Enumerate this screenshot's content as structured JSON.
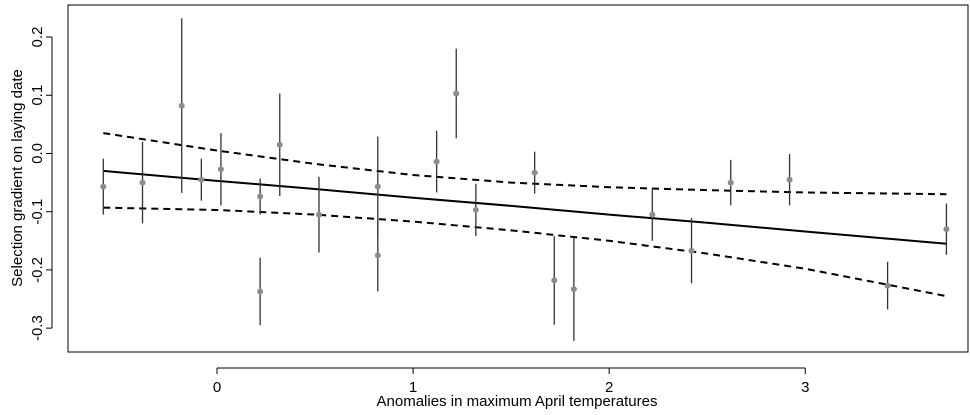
{
  "chart_data": {
    "type": "scatter",
    "xlabel": "Anomalies in maximum April temperatures",
    "ylabel": "Selection gradient on laying date",
    "x": [
      -0.58,
      -0.38,
      -0.18,
      -0.08,
      0.02,
      0.22,
      0.22,
      0.32,
      0.52,
      0.82,
      0.82,
      1.12,
      1.22,
      1.32,
      1.62,
      1.72,
      1.82,
      2.22,
      2.42,
      2.62,
      2.92,
      3.42,
      3.72
    ],
    "values": [
      -0.057,
      -0.05,
      0.082,
      -0.045,
      -0.027,
      -0.074,
      -0.237,
      0.015,
      -0.105,
      -0.057,
      -0.175,
      -0.014,
      0.103,
      -0.097,
      -0.033,
      -0.218,
      -0.233,
      -0.105,
      -0.167,
      -0.05,
      -0.045,
      -0.227,
      -0.13
    ],
    "errors": [
      0.048,
      0.07,
      0.15,
      0.036,
      0.062,
      0.031,
      0.058,
      0.088,
      0.065,
      0.086,
      0.062,
      0.053,
      0.077,
      0.045,
      0.036,
      0.076,
      0.089,
      0.045,
      0.056,
      0.039,
      0.044,
      0.041,
      0.044
    ],
    "color": "#8c8c8c",
    "error_color": "#333333",
    "line_x": [
      -0.58,
      0,
      0.5,
      1,
      1.5,
      2,
      2.5,
      3,
      3.72
    ],
    "lines": [
      {
        "values": [
          -0.03,
          -0.047,
          -0.061,
          -0.076,
          -0.09,
          -0.105,
          -0.119,
          -0.134,
          -0.155
        ],
        "color": "#000000",
        "dashed": false
      },
      {
        "values": [
          0.035,
          0.005,
          -0.018,
          -0.037,
          -0.05,
          -0.058,
          -0.063,
          -0.067,
          -0.07
        ],
        "color": "#000000",
        "dashed": true
      },
      {
        "values": [
          -0.093,
          -0.097,
          -0.105,
          -0.117,
          -0.132,
          -0.15,
          -0.172,
          -0.198,
          -0.245
        ],
        "color": "#000000",
        "dashed": true
      }
    ],
    "xlim": [
      -0.76,
      3.83
    ],
    "ylim": [
      -0.341,
      0.255
    ],
    "xticks": [
      0,
      1,
      2,
      3
    ],
    "yticks": [
      -0.3,
      -0.2,
      -0.1,
      {
        "value": 0,
        "label": "0.0"
      },
      0.1,
      0.2
    ],
    "grid": false
  }
}
